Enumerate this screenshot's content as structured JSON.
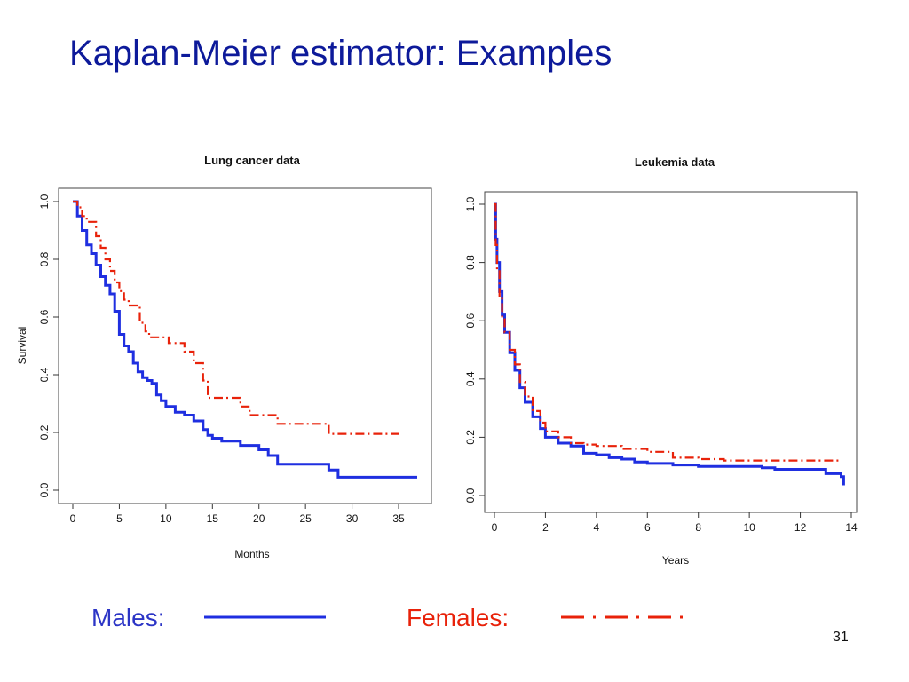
{
  "slide": {
    "title": "Kaplan-Meier estimator: Examples",
    "page_number": "31"
  },
  "legend": {
    "males_label": "Males:",
    "females_label": "Females:",
    "males_color": "#1f2fe0",
    "females_color": "#e8220a"
  },
  "chart_data": [
    {
      "type": "line",
      "title": "Lung cancer data",
      "xlabel": "Months",
      "ylabel": "Survival",
      "xlim": [
        0,
        37
      ],
      "ylim": [
        0,
        1
      ],
      "xticks": [
        0,
        5,
        10,
        15,
        20,
        25,
        30,
        35
      ],
      "yticks": [
        0.0,
        0.2,
        0.4,
        0.6,
        0.8,
        1.0
      ],
      "series": [
        {
          "color": "#1f2fe0",
          "points": [
            [
              0,
              1.0
            ],
            [
              0.5,
              0.95
            ],
            [
              1,
              0.9
            ],
            [
              1.5,
              0.85
            ],
            [
              2,
              0.82
            ],
            [
              2.5,
              0.78
            ],
            [
              3,
              0.74
            ],
            [
              3.5,
              0.71
            ],
            [
              4,
              0.68
            ],
            [
              4.5,
              0.62
            ],
            [
              5,
              0.54
            ],
            [
              5.5,
              0.5
            ],
            [
              6,
              0.48
            ],
            [
              6.5,
              0.44
            ],
            [
              7,
              0.41
            ],
            [
              7.5,
              0.39
            ],
            [
              8,
              0.38
            ],
            [
              8.5,
              0.37
            ],
            [
              9,
              0.33
            ],
            [
              9.5,
              0.31
            ],
            [
              10,
              0.29
            ],
            [
              11,
              0.27
            ],
            [
              12,
              0.26
            ],
            [
              13,
              0.24
            ],
            [
              14,
              0.21
            ],
            [
              14.5,
              0.19
            ],
            [
              15,
              0.18
            ],
            [
              16,
              0.17
            ],
            [
              17,
              0.17
            ],
            [
              18,
              0.155
            ],
            [
              20,
              0.14
            ],
            [
              21,
              0.12
            ],
            [
              22,
              0.09
            ],
            [
              24,
              0.09
            ],
            [
              26,
              0.09
            ],
            [
              27.5,
              0.07
            ],
            [
              28.5,
              0.045
            ],
            [
              30,
              0.045
            ],
            [
              35,
              0.045
            ],
            [
              37,
              0.045
            ]
          ]
        },
        {
          "color": "#e8220a",
          "points": [
            [
              0,
              1.0
            ],
            [
              0.5,
              0.98
            ],
            [
              1,
              0.95
            ],
            [
              1.5,
              0.93
            ],
            [
              2.3,
              0.93
            ],
            [
              2.5,
              0.88
            ],
            [
              3,
              0.84
            ],
            [
              3.5,
              0.8
            ],
            [
              4,
              0.76
            ],
            [
              4.5,
              0.72
            ],
            [
              5,
              0.69
            ],
            [
              5.5,
              0.66
            ],
            [
              6,
              0.64
            ],
            [
              7,
              0.64
            ],
            [
              7.2,
              0.58
            ],
            [
              7.8,
              0.55
            ],
            [
              8.2,
              0.53
            ],
            [
              10,
              0.53
            ],
            [
              10.3,
              0.51
            ],
            [
              11,
              0.51
            ],
            [
              12,
              0.48
            ],
            [
              13,
              0.44
            ],
            [
              14,
              0.38
            ],
            [
              14.5,
              0.32
            ],
            [
              17,
              0.32
            ],
            [
              18,
              0.29
            ],
            [
              19,
              0.26
            ],
            [
              21,
              0.26
            ],
            [
              22,
              0.23
            ],
            [
              25,
              0.23
            ],
            [
              27,
              0.23
            ],
            [
              27.5,
              0.195
            ],
            [
              30,
              0.195
            ],
            [
              35,
              0.195
            ]
          ]
        }
      ]
    },
    {
      "type": "line",
      "title": "Leukemia data",
      "xlabel": "Years",
      "ylabel": "",
      "xlim": [
        0,
        14
      ],
      "ylim": [
        0,
        1
      ],
      "xticks": [
        0,
        2,
        4,
        6,
        8,
        10,
        12,
        14
      ],
      "yticks": [
        0.0,
        0.2,
        0.4,
        0.6,
        0.8,
        1.0
      ],
      "series": [
        {
          "color": "#1f2fe0",
          "points": [
            [
              0,
              1.0
            ],
            [
              0.05,
              0.88
            ],
            [
              0.1,
              0.8
            ],
            [
              0.2,
              0.7
            ],
            [
              0.3,
              0.62
            ],
            [
              0.4,
              0.56
            ],
            [
              0.6,
              0.49
            ],
            [
              0.8,
              0.43
            ],
            [
              1,
              0.37
            ],
            [
              1.2,
              0.32
            ],
            [
              1.5,
              0.27
            ],
            [
              1.8,
              0.23
            ],
            [
              2,
              0.2
            ],
            [
              2.5,
              0.18
            ],
            [
              3,
              0.17
            ],
            [
              3.5,
              0.145
            ],
            [
              4,
              0.14
            ],
            [
              4.5,
              0.13
            ],
            [
              5,
              0.125
            ],
            [
              5.5,
              0.115
            ],
            [
              6,
              0.11
            ],
            [
              7,
              0.105
            ],
            [
              8,
              0.1
            ],
            [
              9,
              0.1
            ],
            [
              10,
              0.1
            ],
            [
              10.5,
              0.095
            ],
            [
              11,
              0.09
            ],
            [
              12,
              0.09
            ],
            [
              12.8,
              0.09
            ],
            [
              13,
              0.075
            ],
            [
              13.6,
              0.065
            ],
            [
              13.7,
              0.035
            ]
          ]
        },
        {
          "color": "#e8220a",
          "points": [
            [
              0,
              1.0
            ],
            [
              0.05,
              0.86
            ],
            [
              0.1,
              0.77
            ],
            [
              0.2,
              0.68
            ],
            [
              0.3,
              0.61
            ],
            [
              0.4,
              0.56
            ],
            [
              0.6,
              0.5
            ],
            [
              0.8,
              0.45
            ],
            [
              1,
              0.39
            ],
            [
              1.2,
              0.34
            ],
            [
              1.5,
              0.29
            ],
            [
              1.8,
              0.25
            ],
            [
              2,
              0.22
            ],
            [
              2.5,
              0.2
            ],
            [
              3,
              0.18
            ],
            [
              3.5,
              0.175
            ],
            [
              4,
              0.17
            ],
            [
              5,
              0.16
            ],
            [
              6,
              0.15
            ],
            [
              7,
              0.13
            ],
            [
              8,
              0.125
            ],
            [
              9,
              0.12
            ],
            [
              10,
              0.12
            ],
            [
              11,
              0.12
            ],
            [
              12,
              0.12
            ],
            [
              13,
              0.12
            ],
            [
              13.5,
              0.12
            ]
          ]
        }
      ]
    }
  ]
}
